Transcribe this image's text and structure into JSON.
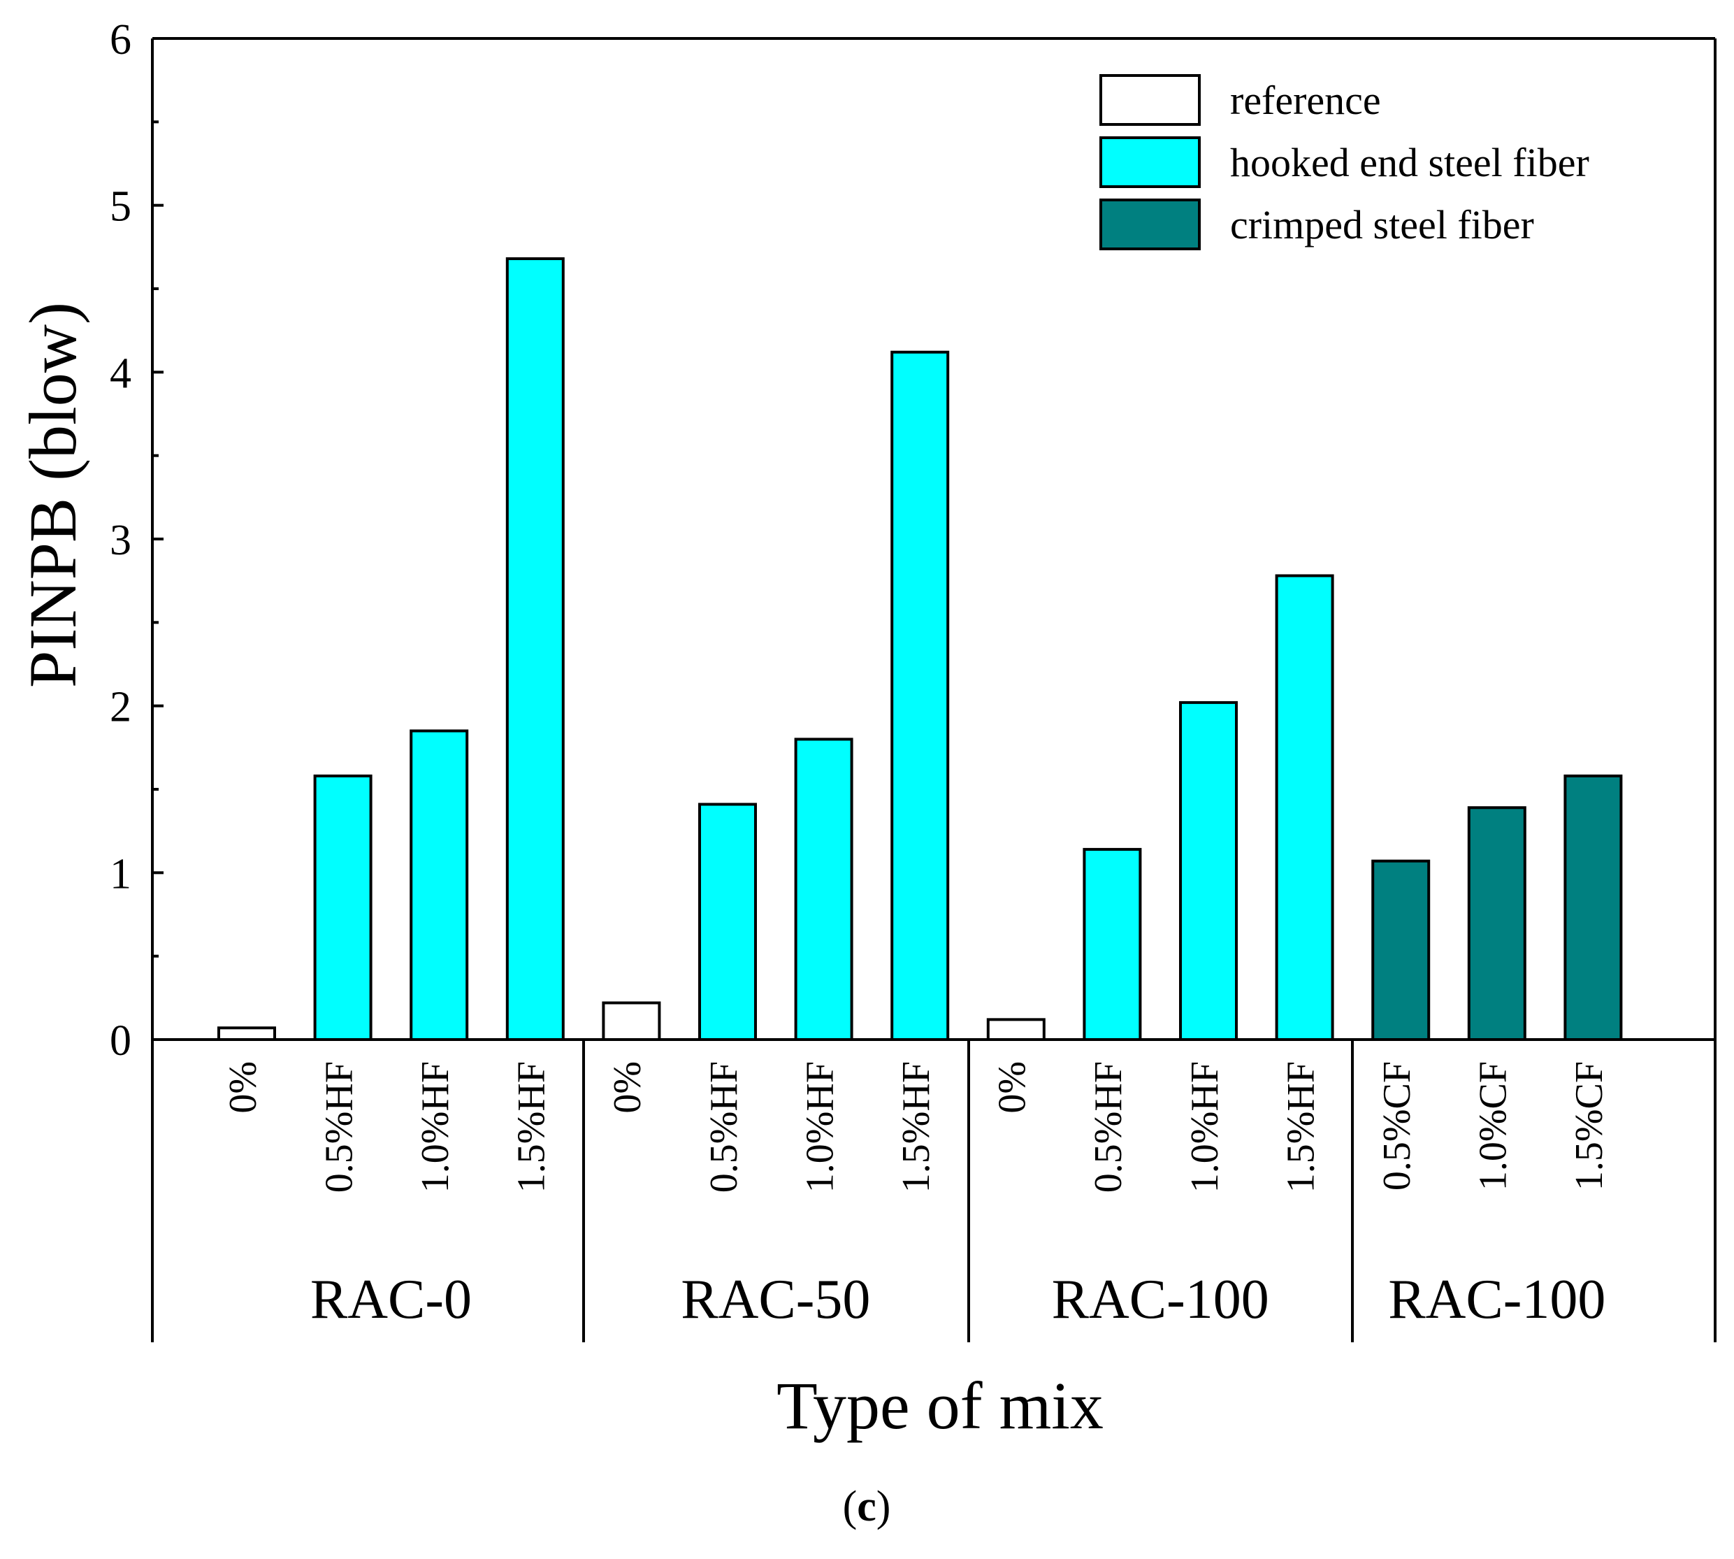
{
  "chart_data": {
    "type": "bar",
    "ylabel": "PINPB (blow)",
    "xlabel": "Type of mix",
    "ylim": [
      0,
      6
    ],
    "y_ticks": [
      "0",
      "1",
      "2",
      "3",
      "4",
      "5",
      "6"
    ],
    "caption": {
      "open": "(",
      "letter": "c",
      "close": ")"
    },
    "legend": {
      "position": "top-right",
      "entries": [
        {
          "key": "reference",
          "label": "reference",
          "color": "#ffffff"
        },
        {
          "key": "hooked",
          "label": "hooked end steel fiber",
          "color": "#00ffff"
        },
        {
          "key": "crimped",
          "label": "crimped steel fiber",
          "color": "#008080"
        }
      ]
    },
    "groups": [
      {
        "name": "RAC-0",
        "bars": [
          {
            "label": "0%",
            "value": 0.07,
            "series": "reference"
          },
          {
            "label": "0.5%HF",
            "value": 1.58,
            "series": "hooked"
          },
          {
            "label": "1.0%HF",
            "value": 1.85,
            "series": "hooked"
          },
          {
            "label": "1.5%HF",
            "value": 4.68,
            "series": "hooked"
          }
        ]
      },
      {
        "name": "RAC-50",
        "bars": [
          {
            "label": "0%",
            "value": 0.22,
            "series": "reference"
          },
          {
            "label": "0.5%HF",
            "value": 1.41,
            "series": "hooked"
          },
          {
            "label": "1.0%HF",
            "value": 1.8,
            "series": "hooked"
          },
          {
            "label": "1.5%HF",
            "value": 4.12,
            "series": "hooked"
          }
        ]
      },
      {
        "name": "RAC-100",
        "bars": [
          {
            "label": "0%",
            "value": 0.12,
            "series": "reference"
          },
          {
            "label": "0.5%HF",
            "value": 1.14,
            "series": "hooked"
          },
          {
            "label": "1.0%HF",
            "value": 2.02,
            "series": "hooked"
          },
          {
            "label": "1.5%HF",
            "value": 2.78,
            "series": "hooked"
          }
        ]
      },
      {
        "name": "RAC-100",
        "bars": [
          {
            "label": "0.5%CF",
            "value": 1.07,
            "series": "crimped"
          },
          {
            "label": "1.0%CF",
            "value": 1.39,
            "series": "crimped"
          },
          {
            "label": "1.5%CF",
            "value": 1.58,
            "series": "crimped"
          }
        ]
      }
    ]
  }
}
